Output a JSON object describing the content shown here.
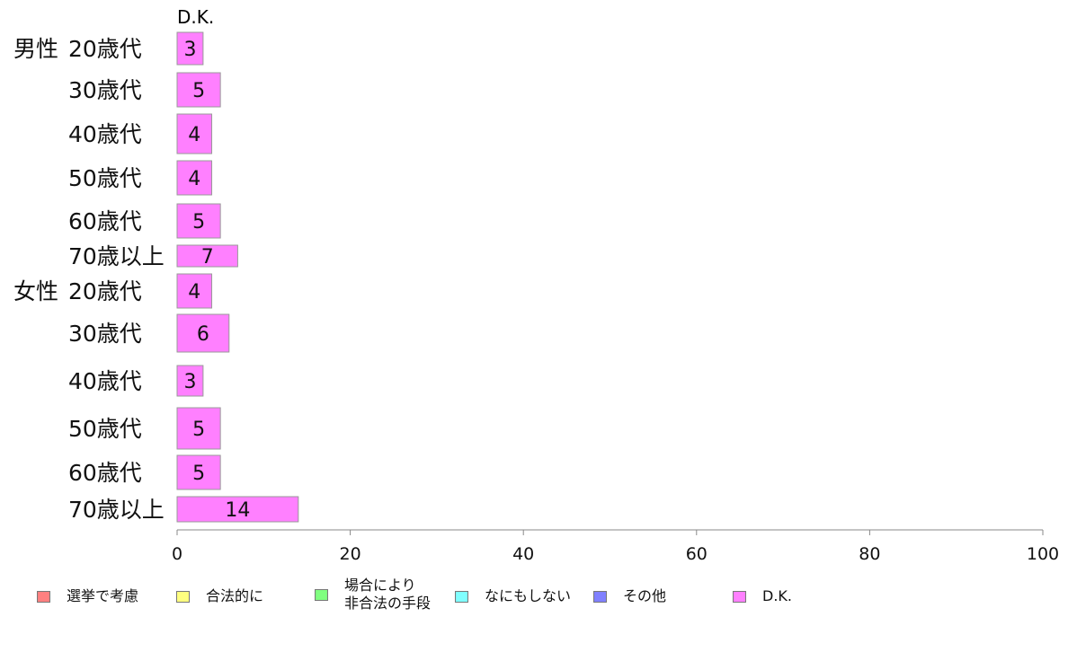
{
  "chart_data": {
    "type": "bar",
    "orientation": "horizontal",
    "series_heading": "D.K.",
    "groups": [
      "男性",
      "女性"
    ],
    "categories": [
      {
        "group": "男性",
        "label": "20歳代"
      },
      {
        "group": "",
        "label": "30歳代"
      },
      {
        "group": "",
        "label": "40歳代"
      },
      {
        "group": "",
        "label": "50歳代"
      },
      {
        "group": "",
        "label": "60歳代"
      },
      {
        "group": "",
        "label": "70歳以上"
      },
      {
        "group": "女性",
        "label": "20歳代"
      },
      {
        "group": "",
        "label": "30歳代"
      },
      {
        "group": "",
        "label": "40歳代"
      },
      {
        "group": "",
        "label": "50歳代"
      },
      {
        "group": "",
        "label": "60歳代"
      },
      {
        "group": "",
        "label": "70歳以上"
      }
    ],
    "series": [
      {
        "name": "D.K.",
        "values": [
          3,
          5,
          4,
          4,
          5,
          7,
          4,
          6,
          3,
          5,
          5,
          14
        ],
        "color": "#ff80ff"
      }
    ],
    "xlim": [
      0,
      100
    ],
    "xticks": [
      "0",
      "20",
      "40",
      "60",
      "80",
      "100"
    ],
    "grid": false,
    "legend_position": "bottom"
  },
  "legend": [
    {
      "label": "選挙で考慮",
      "color": "#ff8080"
    },
    {
      "label": "合法的に",
      "color": "#ffff80"
    },
    {
      "label": "場合により\n非合法の手段",
      "color": "#80ff80"
    },
    {
      "label": "なにもしない",
      "color": "#80ffff"
    },
    {
      "label": "その他",
      "color": "#8080ff"
    },
    {
      "label": "D.K.",
      "color": "#ff80ff"
    }
  ],
  "colors": {
    "bar_stroke": "#999999",
    "axis": "#888888"
  }
}
